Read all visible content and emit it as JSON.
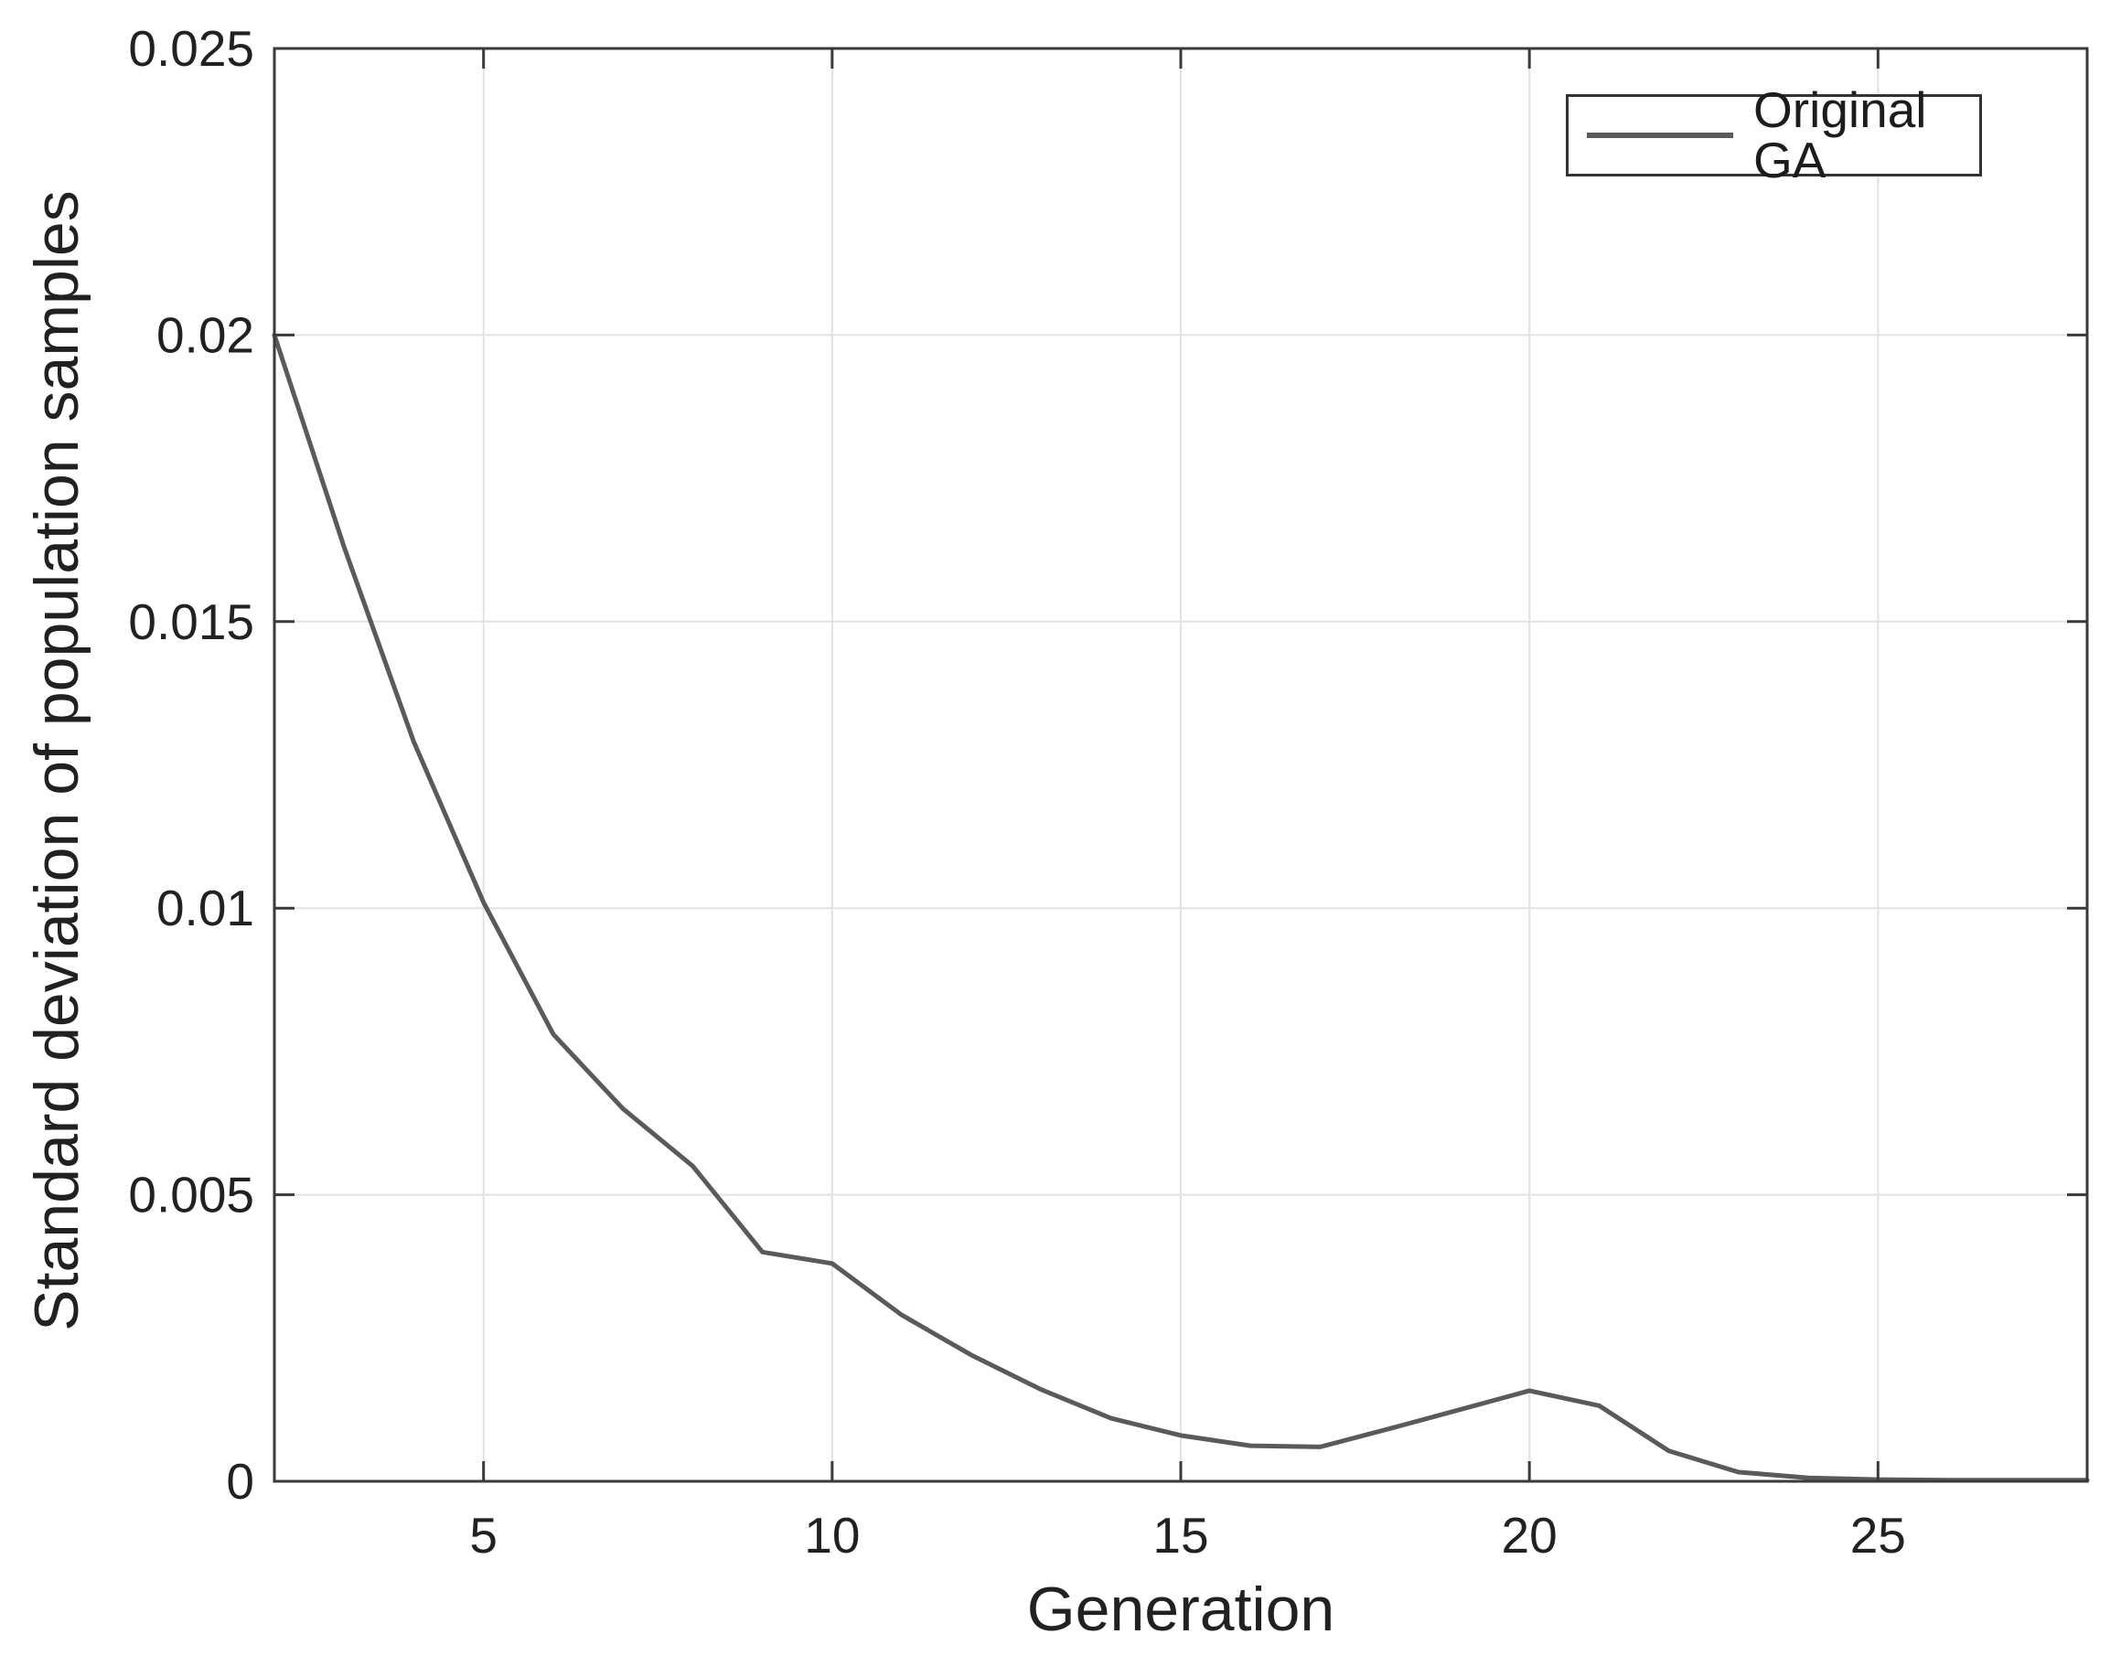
{
  "figure": {
    "background": "#ffffff",
    "colors": {
      "axis": "#3a3a3a",
      "tick_text": "#212121",
      "grid": "#e2e2e2",
      "line": "#5a5a5a"
    },
    "legend": {
      "entries": [
        {
          "label": "Original GA",
          "line_color": "#5a5a5a"
        }
      ],
      "position": "top-right"
    }
  },
  "chart_data": {
    "type": "line",
    "title": "",
    "xlabel": "Generation",
    "ylabel": "Standard deviation of population samples",
    "xlim": [
      2,
      28
    ],
    "ylim": [
      0,
      0.025
    ],
    "x_ticks": [
      5,
      10,
      15,
      20,
      25
    ],
    "x_tick_labels": [
      "5",
      "10",
      "15",
      "20",
      "25"
    ],
    "y_ticks": [
      0,
      0.005,
      0.01,
      0.015,
      0.02,
      0.025
    ],
    "y_tick_labels": [
      "0",
      "0.005",
      "0.01",
      "0.015",
      "0.02",
      "0.025"
    ],
    "grid": true,
    "legend_position": "top-right",
    "series": [
      {
        "name": "Original GA",
        "x": [
          2,
          3,
          4,
          5,
          6,
          7,
          8,
          9,
          10,
          11,
          12,
          13,
          14,
          15,
          16,
          17,
          18,
          19,
          20,
          21,
          22,
          23,
          24,
          25,
          26,
          27,
          28
        ],
        "y": [
          0.02,
          0.0163,
          0.0129,
          0.0101,
          0.0078,
          0.0065,
          0.0055,
          0.004,
          0.0038,
          0.0029,
          0.0022,
          0.0016,
          0.0011,
          0.0008,
          0.00062,
          0.0006,
          0.00092,
          0.00125,
          0.00158,
          0.00132,
          0.00053,
          0.00016,
          6e-05,
          3e-05,
          2e-05,
          2e-05,
          2e-05
        ]
      }
    ]
  }
}
